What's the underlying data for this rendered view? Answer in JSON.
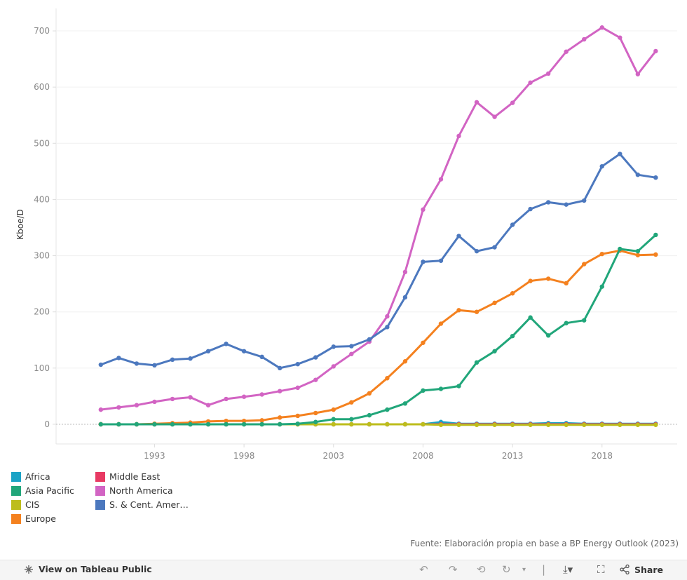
{
  "chart_data": {
    "type": "line",
    "ylabel": "Kboe/D",
    "ylim": [
      -35,
      740
    ],
    "yticks": [
      0,
      100,
      200,
      300,
      400,
      500,
      600,
      700
    ],
    "xticks": [
      1993,
      1998,
      2003,
      2008,
      2013,
      2018
    ],
    "x": [
      1990,
      1991,
      1992,
      1993,
      1994,
      1995,
      1996,
      1997,
      1998,
      1999,
      2000,
      2001,
      2002,
      2003,
      2004,
      2005,
      2006,
      2007,
      2008,
      2009,
      2010,
      2011,
      2012,
      2013,
      2014,
      2015,
      2016,
      2017,
      2018,
      2019,
      2020,
      2021
    ],
    "series": [
      {
        "name": "Africa",
        "color": "#1ba3c6",
        "values": [
          0,
          0,
          0,
          0,
          0,
          0,
          0,
          0,
          0,
          0,
          0,
          0,
          0,
          0,
          0,
          0,
          0,
          0,
          0,
          4,
          1,
          1,
          1,
          1,
          1,
          2,
          2,
          1,
          1,
          1,
          1,
          1
        ]
      },
      {
        "name": "Middle East",
        "color": "#e83a63",
        "values": [
          0,
          0,
          0,
          0,
          0,
          0,
          0,
          0,
          0,
          0,
          0,
          0,
          0,
          0,
          0,
          0,
          0,
          0,
          0,
          0,
          0,
          0,
          0,
          0,
          0,
          0,
          0,
          0,
          0,
          0,
          0,
          0
        ]
      },
      {
        "name": "CIS",
        "color": "#bdbd1c",
        "values": [
          0,
          0,
          0,
          0,
          0,
          0,
          0,
          0,
          0,
          0,
          0,
          0,
          0,
          0,
          0,
          0,
          0,
          0,
          0,
          -1,
          -1,
          -1,
          -1,
          -1,
          -1,
          -1,
          -1,
          -1,
          -1,
          -1,
          -1,
          -1
        ]
      },
      {
        "name": "Europe",
        "color": "#f4811f",
        "values": [
          0,
          0,
          0,
          1,
          2,
          3,
          5,
          6,
          6,
          7,
          12,
          15,
          20,
          26,
          39,
          55,
          82,
          112,
          145,
          179,
          203,
          200,
          216,
          233,
          255,
          259,
          251,
          285,
          303,
          309,
          301,
          302
        ]
      },
      {
        "name": "Asia Pacific",
        "color": "#21a67a",
        "values": [
          0,
          0,
          0,
          0,
          0,
          0,
          0,
          0,
          0,
          0,
          0,
          1,
          4,
          9,
          9,
          16,
          26,
          37,
          60,
          63,
          68,
          110,
          130,
          157,
          190,
          158,
          180,
          185,
          245,
          312,
          308,
          337
        ]
      },
      {
        "name": "North America",
        "color": "#d264c3",
        "values": [
          26,
          30,
          34,
          40,
          45,
          48,
          34,
          45,
          49,
          53,
          59,
          65,
          79,
          103,
          125,
          147,
          192,
          271,
          382,
          436,
          513,
          573,
          547,
          572,
          608,
          624,
          663,
          685,
          706,
          688,
          623,
          664
        ]
      },
      {
        "name": "S. & Cent. America",
        "color": "#4c78be",
        "values": [
          106,
          118,
          108,
          105,
          115,
          117,
          130,
          143,
          130,
          120,
          100,
          107,
          119,
          138,
          139,
          151,
          173,
          226,
          289,
          291,
          335,
          308,
          315,
          355,
          383,
          395,
          391,
          398,
          459,
          481,
          444,
          439
        ]
      }
    ]
  },
  "legend": {
    "items": [
      {
        "label": "Africa",
        "color": "#1ba3c6"
      },
      {
        "label": "Asia Pacific",
        "color": "#21a67a"
      },
      {
        "label": "CIS",
        "color": "#bdbd1c"
      },
      {
        "label": "Europe",
        "color": "#f4811f"
      },
      {
        "label": "Middle East",
        "color": "#e83a63"
      },
      {
        "label": "North America",
        "color": "#d264c3"
      },
      {
        "label": "S. & Cent. Amer…",
        "color": "#4c78be"
      }
    ]
  },
  "source": "Fuente: Elaboración propia en base a BP Energy Outlook (2023)",
  "toolbar": {
    "view_label": "View on Tableau Public",
    "share_label": "Share"
  }
}
